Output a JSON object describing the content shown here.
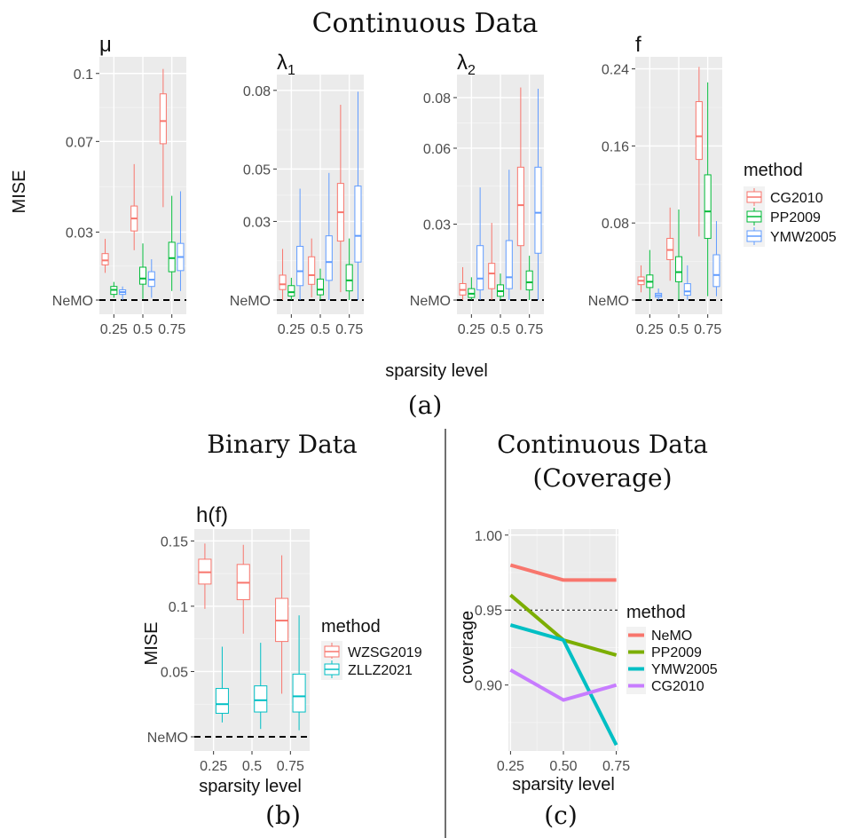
{
  "figure": {
    "top_title": "Continuous Data",
    "x_axis_label": "sparsity level",
    "y_axis_label": "MISE",
    "label_a": "(a)",
    "label_b": "(b)",
    "label_c": "(c)",
    "binary_title": "Binary Data",
    "coverage_title_line1": "Continuous Data",
    "coverage_title_line2": "(Coverage)"
  },
  "legends": {
    "continuous": {
      "title": "method",
      "items": [
        {
          "label": "CG2010",
          "color": "#F8766D"
        },
        {
          "label": "PP2009",
          "color": "#00BA38"
        },
        {
          "label": "YMW2005",
          "color": "#619CFF"
        }
      ]
    },
    "binary": {
      "title": "method",
      "items": [
        {
          "label": "WZSG2019",
          "color": "#F8766D"
        },
        {
          "label": "ZLLZ2021",
          "color": "#00BFC4"
        }
      ]
    },
    "coverage": {
      "title": "method",
      "items": [
        {
          "label": "NeMO",
          "color": "#F8766D"
        },
        {
          "label": "PP2009",
          "color": "#7CAE00"
        },
        {
          "label": "YMW2005",
          "color": "#00BFC4"
        },
        {
          "label": "CG2010",
          "color": "#C77CFF"
        }
      ]
    }
  },
  "chart_data": [
    {
      "id": "mu",
      "type": "box",
      "title": "μ",
      "title_sub": "",
      "categories": [
        "0.25",
        "0.5",
        "0.75"
      ],
      "ylim": [
        0.0,
        0.105
      ],
      "yticks": [
        0.03,
        0.07,
        0.1
      ],
      "ytick_labels": [
        "0.03",
        "0.07",
        "0.1"
      ],
      "baseline_label": "NeMO",
      "series": [
        {
          "name": "CG2010",
          "color": "#F8766D",
          "boxes": [
            {
              "min": 0.012,
              "q1": 0.0155,
              "median": 0.0175,
              "q3": 0.0205,
              "max": 0.027
            },
            {
              "min": 0.022,
              "q1": 0.0305,
              "median": 0.036,
              "q3": 0.0415,
              "max": 0.06
            },
            {
              "min": 0.041,
              "q1": 0.069,
              "median": 0.079,
              "q3": 0.091,
              "max": 0.102
            }
          ]
        },
        {
          "name": "PP2009",
          "color": "#00BA38",
          "boxes": [
            {
              "min": 0.001,
              "q1": 0.0025,
              "median": 0.0045,
              "q3": 0.006,
              "max": 0.008
            },
            {
              "min": 0.0005,
              "q1": 0.007,
              "median": 0.0095,
              "q3": 0.0145,
              "max": 0.025
            },
            {
              "min": 0.004,
              "q1": 0.0125,
              "median": 0.0185,
              "q3": 0.0255,
              "max": 0.046
            }
          ]
        },
        {
          "name": "YMW2005",
          "color": "#619CFF",
          "boxes": [
            {
              "min": 0.0,
              "q1": 0.0025,
              "median": 0.0035,
              "q3": 0.0045,
              "max": 0.006
            },
            {
              "min": 0.001,
              "q1": 0.006,
              "median": 0.009,
              "q3": 0.0125,
              "max": 0.018
            },
            {
              "min": 0.004,
              "q1": 0.013,
              "median": 0.019,
              "q3": 0.025,
              "max": 0.048
            }
          ]
        }
      ]
    },
    {
      "id": "lambda1",
      "type": "box",
      "title": "λ",
      "title_sub": "1",
      "categories": [
        "0.25",
        "0.5",
        "0.75"
      ],
      "ylim": [
        0.0,
        0.084
      ],
      "yticks": [
        0.03,
        0.05,
        0.08
      ],
      "ytick_labels": [
        "0.03",
        "0.05",
        "0.08"
      ],
      "baseline_label": "NeMO",
      "series": [
        {
          "name": "CG2010",
          "color": "#F8766D",
          "boxes": [
            {
              "min": 0.0,
              "q1": 0.004,
              "median": 0.006,
              "q3": 0.0095,
              "max": 0.0195
            },
            {
              "min": 0.001,
              "q1": 0.006,
              "median": 0.0095,
              "q3": 0.0165,
              "max": 0.0235
            },
            {
              "min": 0.003,
              "q1": 0.0225,
              "median": 0.0335,
              "q3": 0.0445,
              "max": 0.0745
            }
          ]
        },
        {
          "name": "PP2009",
          "color": "#00BA38",
          "boxes": [
            {
              "min": 0.0,
              "q1": 0.0015,
              "median": 0.003,
              "q3": 0.0055,
              "max": 0.0085
            },
            {
              "min": 0.0,
              "q1": 0.002,
              "median": 0.004,
              "q3": 0.008,
              "max": 0.012
            },
            {
              "min": 0.0,
              "q1": 0.0035,
              "median": 0.0075,
              "q3": 0.0135,
              "max": 0.0235
            }
          ]
        },
        {
          "name": "YMW2005",
          "color": "#619CFF",
          "boxes": [
            {
              "min": 0.0,
              "q1": 0.0055,
              "median": 0.011,
              "q3": 0.0205,
              "max": 0.0425
            },
            {
              "min": 0.0,
              "q1": 0.0075,
              "median": 0.0145,
              "q3": 0.0245,
              "max": 0.0485
            },
            {
              "min": 0.0,
              "q1": 0.0145,
              "median": 0.0245,
              "q3": 0.0435,
              "max": 0.0795
            }
          ]
        }
      ]
    },
    {
      "id": "lambda2",
      "type": "box",
      "title": "λ",
      "title_sub": "2",
      "categories": [
        "0.25",
        "0.5",
        "0.75"
      ],
      "ylim": [
        0.0,
        0.087
      ],
      "yticks": [
        0.03,
        0.06,
        0.08
      ],
      "ytick_labels": [
        "0.03",
        "0.06",
        "0.08"
      ],
      "baseline_label": "NeMO",
      "series": [
        {
          "name": "CG2010",
          "color": "#F8766D",
          "boxes": [
            {
              "min": 0.0,
              "q1": 0.002,
              "median": 0.004,
              "q3": 0.0065,
              "max": 0.013
            },
            {
              "min": 0.0,
              "q1": 0.0045,
              "median": 0.0105,
              "q3": 0.0145,
              "max": 0.0305
            },
            {
              "min": 0.004,
              "q1": 0.0215,
              "median": 0.0375,
              "q3": 0.0525,
              "max": 0.084
            }
          ]
        },
        {
          "name": "PP2009",
          "color": "#00BA38",
          "boxes": [
            {
              "min": 0.0,
              "q1": 0.001,
              "median": 0.0025,
              "q3": 0.0045,
              "max": 0.009
            },
            {
              "min": 0.0,
              "q1": 0.0015,
              "median": 0.0035,
              "q3": 0.006,
              "max": 0.0105
            },
            {
              "min": 0.0,
              "q1": 0.004,
              "median": 0.007,
              "q3": 0.0115,
              "max": 0.0175
            }
          ]
        },
        {
          "name": "YMW2005",
          "color": "#619CFF",
          "boxes": [
            {
              "min": 0.0,
              "q1": 0.004,
              "median": 0.0085,
              "q3": 0.0215,
              "max": 0.0445
            },
            {
              "min": 0.0,
              "q1": 0.0045,
              "median": 0.009,
              "q3": 0.0235,
              "max": 0.0515
            },
            {
              "min": 0.0,
              "q1": 0.0185,
              "median": 0.0345,
              "q3": 0.0525,
              "max": 0.0835
            }
          ]
        }
      ]
    },
    {
      "id": "f",
      "type": "box",
      "title": "f",
      "title_sub": "",
      "categories": [
        "0.25",
        "0.5",
        "0.75"
      ],
      "ylim": [
        0.0,
        0.247
      ],
      "yticks": [
        0.08,
        0.16,
        0.24
      ],
      "ytick_labels": [
        "0.08",
        "0.16",
        "0.24"
      ],
      "baseline_label": "NeMO",
      "series": [
        {
          "name": "CG2010",
          "color": "#F8766D",
          "boxes": [
            {
              "min": 0.008,
              "q1": 0.016,
              "median": 0.02,
              "q3": 0.024,
              "max": 0.036
            },
            {
              "min": 0.02,
              "q1": 0.042,
              "median": 0.052,
              "q3": 0.064,
              "max": 0.096
            },
            {
              "min": 0.066,
              "q1": 0.146,
              "median": 0.17,
              "q3": 0.206,
              "max": 0.242
            }
          ]
        },
        {
          "name": "PP2009",
          "color": "#00BA38",
          "boxes": [
            {
              "min": 0.0,
              "q1": 0.013,
              "median": 0.019,
              "q3": 0.026,
              "max": 0.052
            },
            {
              "min": 0.0,
              "q1": 0.019,
              "median": 0.029,
              "q3": 0.045,
              "max": 0.094
            },
            {
              "min": 0.004,
              "q1": 0.064,
              "median": 0.092,
              "q3": 0.13,
              "max": 0.226
            }
          ]
        },
        {
          "name": "YMW2005",
          "color": "#619CFF",
          "boxes": [
            {
              "min": 0.0,
              "q1": 0.003,
              "median": 0.005,
              "q3": 0.007,
              "max": 0.012
            },
            {
              "min": 0.0,
              "q1": 0.005,
              "median": 0.009,
              "q3": 0.017,
              "max": 0.036
            },
            {
              "min": 0.004,
              "q1": 0.014,
              "median": 0.026,
              "q3": 0.047,
              "max": 0.082
            }
          ]
        }
      ]
    },
    {
      "id": "hf",
      "type": "box",
      "title": "h(f)",
      "title_sub": "",
      "categories": [
        "0.25",
        "0.5",
        "0.75"
      ],
      "xlabel": "sparsity level",
      "ylabel": "MISE",
      "ylim": [
        0.0,
        0.155
      ],
      "yticks": [
        0.05,
        0.1,
        0.15
      ],
      "ytick_labels": [
        "0.05",
        "0.1",
        "0.15"
      ],
      "baseline_label": "NeMO",
      "series": [
        {
          "name": "WZSG2019",
          "color": "#F8766D",
          "boxes": [
            {
              "min": 0.098,
              "q1": 0.117,
              "median": 0.126,
              "q3": 0.136,
              "max": 0.148
            },
            {
              "min": 0.079,
              "q1": 0.105,
              "median": 0.118,
              "q3": 0.132,
              "max": 0.147
            },
            {
              "min": 0.033,
              "q1": 0.073,
              "median": 0.089,
              "q3": 0.106,
              "max": 0.139
            }
          ]
        },
        {
          "name": "ZLLZ2021",
          "color": "#00BFC4",
          "boxes": [
            {
              "min": 0.011,
              "q1": 0.018,
              "median": 0.025,
              "q3": 0.037,
              "max": 0.069
            },
            {
              "min": 0.006,
              "q1": 0.019,
              "median": 0.028,
              "q3": 0.039,
              "max": 0.072
            },
            {
              "min": 0.005,
              "q1": 0.019,
              "median": 0.031,
              "q3": 0.048,
              "max": 0.093
            }
          ]
        }
      ]
    },
    {
      "id": "coverage",
      "type": "line",
      "x": [
        0.25,
        0.5,
        0.75
      ],
      "xtick_labels": [
        "0.25",
        "0.50",
        "0.75"
      ],
      "xlabel": "sparsity level",
      "ylabel": "coverage",
      "xlim": [
        0.24,
        0.76
      ],
      "ylim": [
        0.856,
        1.004
      ],
      "yticks": [
        0.9,
        0.95,
        1.0
      ],
      "ytick_labels": [
        "0.90",
        "0.95",
        "1.00"
      ],
      "reference_line": 0.95,
      "series": [
        {
          "name": "NeMO",
          "color": "#F8766D",
          "values": [
            0.98,
            0.97,
            0.97
          ]
        },
        {
          "name": "PP2009",
          "color": "#7CAE00",
          "values": [
            0.96,
            0.93,
            0.92
          ]
        },
        {
          "name": "YMW2005",
          "color": "#00BFC4",
          "values": [
            0.94,
            0.93,
            0.86
          ]
        },
        {
          "name": "CG2010",
          "color": "#C77CFF",
          "values": [
            0.91,
            0.89,
            0.9
          ]
        }
      ]
    }
  ]
}
